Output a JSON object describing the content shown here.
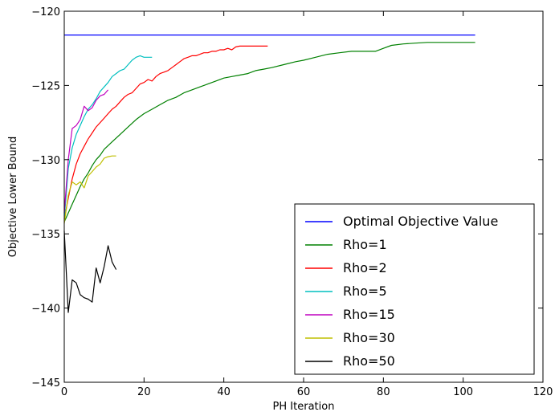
{
  "chart_data": {
    "type": "line",
    "title": "",
    "xlabel": "PH Iteration",
    "ylabel": "Objective Lower Bound",
    "xlim": [
      0,
      120
    ],
    "ylim": [
      -145,
      -120
    ],
    "xticks": [
      "0",
      "20",
      "40",
      "60",
      "80",
      "100",
      "120"
    ],
    "yticks": [
      "−120",
      "−125",
      "−130",
      "−135",
      "−140",
      "−145"
    ],
    "grid": false,
    "legend_position": "bottom-right",
    "series": [
      {
        "name": "Optimal Objective Value",
        "color": "#0000ff",
        "x": [
          0,
          103
        ],
        "y": [
          -121.6,
          -121.6
        ]
      },
      {
        "name": "Rho=1",
        "color": "#008000",
        "x": [
          0,
          1,
          2,
          3,
          4,
          5,
          6,
          7,
          8,
          9,
          10,
          12,
          14,
          16,
          18,
          20,
          22,
          24,
          26,
          28,
          30,
          32,
          34,
          36,
          38,
          40,
          42,
          44,
          46,
          48,
          50,
          52,
          55,
          58,
          60,
          63,
          66,
          69,
          72,
          75,
          78,
          80,
          82,
          85,
          88,
          91,
          94,
          97,
          100,
          103
        ],
        "y": [
          -134.2,
          -133.6,
          -133.0,
          -132.4,
          -131.8,
          -131.3,
          -130.9,
          -130.4,
          -130.0,
          -129.7,
          -129.3,
          -128.8,
          -128.3,
          -127.8,
          -127.3,
          -126.9,
          -126.6,
          -126.3,
          -126.0,
          -125.8,
          -125.5,
          -125.3,
          -125.1,
          -124.9,
          -124.7,
          -124.5,
          -124.4,
          -124.3,
          -124.2,
          -124.0,
          -123.9,
          -123.8,
          -123.6,
          -123.4,
          -123.3,
          -123.1,
          -122.9,
          -122.8,
          -122.7,
          -122.7,
          -122.7,
          -122.5,
          -122.3,
          -122.2,
          -122.15,
          -122.1,
          -122.1,
          -122.1,
          -122.1,
          -122.1
        ]
      },
      {
        "name": "Rho=2",
        "color": "#ff0000",
        "x": [
          0,
          1,
          2,
          3,
          4,
          5,
          6,
          7,
          8,
          9,
          10,
          11,
          12,
          13,
          14,
          15,
          16,
          17,
          18,
          19,
          20,
          21,
          22,
          23,
          24,
          25,
          26,
          27,
          28,
          29,
          30,
          31,
          32,
          33,
          34,
          35,
          36,
          37,
          38,
          39,
          40,
          41,
          42,
          43,
          44,
          45,
          46,
          47,
          48,
          49,
          50,
          51
        ],
        "y": [
          -134.0,
          -132.6,
          -131.3,
          -130.3,
          -129.6,
          -129.1,
          -128.6,
          -128.2,
          -127.8,
          -127.5,
          -127.2,
          -126.9,
          -126.6,
          -126.4,
          -126.1,
          -125.8,
          -125.6,
          -125.5,
          -125.2,
          -124.9,
          -124.8,
          -124.6,
          -124.7,
          -124.4,
          -124.2,
          -124.1,
          -124.0,
          -123.8,
          -123.6,
          -123.4,
          -123.2,
          -123.1,
          -123.0,
          -123.0,
          -122.9,
          -122.8,
          -122.8,
          -122.7,
          -122.7,
          -122.6,
          -122.6,
          -122.5,
          -122.6,
          -122.4,
          -122.35,
          -122.35,
          -122.35,
          -122.35,
          -122.35,
          -122.35,
          -122.35,
          -122.35
        ]
      },
      {
        "name": "Rho=5",
        "color": "#00bfbf",
        "x": [
          0,
          1,
          2,
          3,
          4,
          5,
          6,
          7,
          8,
          9,
          10,
          11,
          12,
          13,
          14,
          15,
          16,
          17,
          18,
          19,
          20,
          21,
          22
        ],
        "y": [
          -134.0,
          -130.6,
          -129.2,
          -128.3,
          -127.7,
          -127.1,
          -126.6,
          -126.3,
          -125.9,
          -125.4,
          -125.1,
          -124.8,
          -124.4,
          -124.2,
          -124.0,
          -123.9,
          -123.6,
          -123.3,
          -123.1,
          -123.0,
          -123.1,
          -123.1,
          -123.1
        ]
      },
      {
        "name": "Rho=15",
        "color": "#bf00bf",
        "x": [
          0,
          1,
          2,
          3,
          4,
          5,
          6,
          7,
          8,
          9,
          10,
          11
        ],
        "y": [
          -133.6,
          -130.0,
          -127.9,
          -127.7,
          -127.3,
          -126.4,
          -126.7,
          -126.5,
          -126.0,
          -125.7,
          -125.6,
          -125.3
        ]
      },
      {
        "name": "Rho=30",
        "color": "#bfbf00",
        "x": [
          0,
          1,
          2,
          3,
          4,
          5,
          6,
          7,
          8,
          9,
          10,
          11,
          12,
          13
        ],
        "y": [
          -134.3,
          -132.4,
          -131.5,
          -131.7,
          -131.5,
          -131.9,
          -131.1,
          -130.8,
          -130.5,
          -130.3,
          -129.9,
          -129.8,
          -129.75,
          -129.75
        ]
      },
      {
        "name": "Rho=50",
        "color": "#000000",
        "x": [
          0,
          1,
          2,
          3,
          4,
          5,
          6,
          7,
          8,
          9,
          10,
          11,
          12,
          13
        ],
        "y": [
          -134.8,
          -140.3,
          -138.1,
          -138.3,
          -139.1,
          -139.3,
          -139.4,
          -139.6,
          -137.3,
          -138.3,
          -137.2,
          -135.8,
          -136.9,
          -137.4
        ]
      }
    ]
  }
}
